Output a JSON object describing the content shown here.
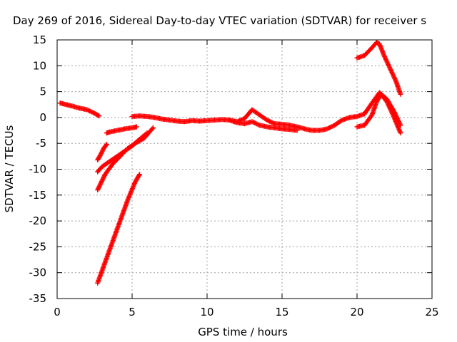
{
  "chart_data": {
    "type": "scatter",
    "title": "Day 269 of 2016, Sidereal Day-to-day VTEC variation (SDTVAR) for receiver s",
    "xlabel": "GPS time / hours",
    "ylabel": "SDTVAR / TECUs",
    "xlim": [
      0,
      25
    ],
    "ylim": [
      -35,
      15
    ],
    "x_ticks": [
      0,
      5,
      10,
      15,
      20,
      25
    ],
    "y_ticks": [
      15,
      10,
      5,
      0,
      -5,
      -10,
      -15,
      -20,
      -25,
      -30,
      -35
    ],
    "x_tick_labels": [
      "0",
      "5",
      "10",
      "15",
      "20",
      "25"
    ],
    "y_tick_labels": [
      "15",
      "10",
      "5",
      "0",
      "-5",
      "-10",
      "-15",
      "-20",
      "-25",
      "-30",
      "-35"
    ],
    "grid": true,
    "marker": "plus",
    "color": "#ff0000",
    "series": [
      {
        "x": [
          0.2,
          0.6,
          1.0,
          1.5,
          2.0,
          2.5,
          2.8
        ],
        "y": [
          2.8,
          2.5,
          2.2,
          1.8,
          1.5,
          0.8,
          0.3
        ]
      },
      {
        "x": [
          2.7,
          2.9,
          3.1,
          3.3
        ],
        "y": [
          -8.2,
          -7.2,
          -6.0,
          -5.2
        ]
      },
      {
        "x": [
          3.3,
          3.5,
          4.0,
          4.5,
          5.0,
          5.3
        ],
        "y": [
          -3.0,
          -2.8,
          -2.5,
          -2.2,
          -2.0,
          -1.8
        ]
      },
      {
        "x": [
          2.7,
          3.0,
          3.5,
          4.0,
          4.5,
          5.0,
          5.5,
          6.0
        ],
        "y": [
          -10.5,
          -9.5,
          -8.5,
          -7.5,
          -6.5,
          -5.5,
          -4.2,
          -3.0
        ]
      },
      {
        "x": [
          2.7,
          3.2,
          3.7,
          4.2,
          4.7,
          5.2,
          5.8,
          6.4
        ],
        "y": [
          -14.0,
          -11.0,
          -9.0,
          -7.5,
          -6.0,
          -5.0,
          -4.0,
          -2.0
        ]
      },
      {
        "x": [
          2.7,
          3.2,
          3.7,
          4.2,
          4.7,
          5.2,
          5.5
        ],
        "y": [
          -32.0,
          -28.0,
          -24.0,
          -20.0,
          -16.0,
          -12.5,
          -11.0
        ]
      },
      {
        "x": [
          5.0,
          5.5,
          6.0,
          6.5,
          7.0,
          7.5,
          8.0,
          8.5,
          9.0,
          9.5,
          10.0,
          10.5,
          11.0,
          11.5,
          12.0,
          12.5,
          13.0,
          13.5,
          14.0,
          14.5,
          15.0,
          15.5,
          16.0,
          16.5,
          17.0,
          17.5,
          18.0,
          18.5,
          19.0,
          19.5,
          20.0,
          20.5,
          21.0,
          21.5,
          22.0,
          22.5,
          22.9
        ],
        "y": [
          0.2,
          0.3,
          0.2,
          0.0,
          -0.3,
          -0.5,
          -0.7,
          -0.8,
          -0.6,
          -0.7,
          -0.6,
          -0.5,
          -0.4,
          -0.5,
          -0.8,
          -0.2,
          1.5,
          0.5,
          -0.5,
          -1.2,
          -1.3,
          -1.5,
          -1.8,
          -2.2,
          -2.5,
          -2.5,
          -2.2,
          -1.5,
          -0.5,
          0.0,
          0.2,
          0.7,
          2.8,
          4.8,
          3.5,
          1.0,
          -1.5
        ]
      },
      {
        "x": [
          11.5,
          12.0,
          12.5,
          13.0,
          13.5,
          14.0,
          14.5,
          15.0,
          15.5,
          16.0
        ],
        "y": [
          -0.5,
          -1.0,
          -1.2,
          -0.8,
          -1.5,
          -1.8,
          -2.0,
          -2.2,
          -2.3,
          -2.5
        ]
      },
      {
        "x": [
          20.0,
          20.5,
          21.0,
          21.3,
          21.6,
          22.0,
          22.4,
          22.9
        ],
        "y": [
          -1.8,
          -1.5,
          0.5,
          3.0,
          4.5,
          3.0,
          0.5,
          -3.0
        ]
      },
      {
        "x": [
          20.0,
          20.5,
          21.0,
          21.3,
          21.5,
          21.8,
          22.2,
          22.6,
          22.9
        ],
        "y": [
          11.5,
          12.0,
          13.5,
          14.5,
          14.2,
          12.0,
          9.5,
          7.0,
          4.5
        ]
      }
    ]
  }
}
